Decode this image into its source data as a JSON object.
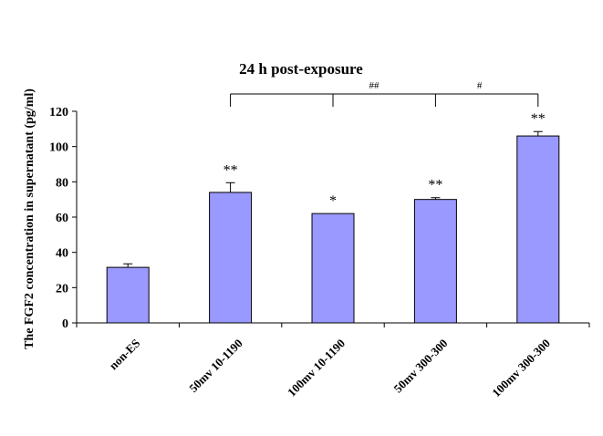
{
  "chart_data": {
    "type": "bar",
    "title": "24 h post-exposure",
    "xlabel": "",
    "ylabel": "The FGF2 concentration in supernatant (pg/ml)",
    "ylim": [
      0,
      120
    ],
    "yticks": [
      0,
      20,
      40,
      60,
      80,
      100,
      120
    ],
    "categories": [
      "non-ES",
      "50mv 10-1190",
      "100mv 10-1190",
      "50mv 300-300",
      "100mv 300-300"
    ],
    "values": [
      31.5,
      74,
      62,
      70,
      106
    ],
    "error_bars": [
      2,
      5.5,
      0,
      1,
      2.5
    ],
    "significance_labels": [
      "",
      "**",
      "*",
      "**",
      "**"
    ],
    "comparison_brackets": [
      {
        "label": "##",
        "from_category": "50mv 10-1190",
        "to_category": "50mv 300-300",
        "connects": [
          "100mv 10-1190"
        ]
      },
      {
        "label": "#",
        "from_category": "50mv 300-300",
        "to_category": "100mv 300-300"
      }
    ],
    "bar_color": "#9999ff",
    "grid": false,
    "legend": "none"
  }
}
